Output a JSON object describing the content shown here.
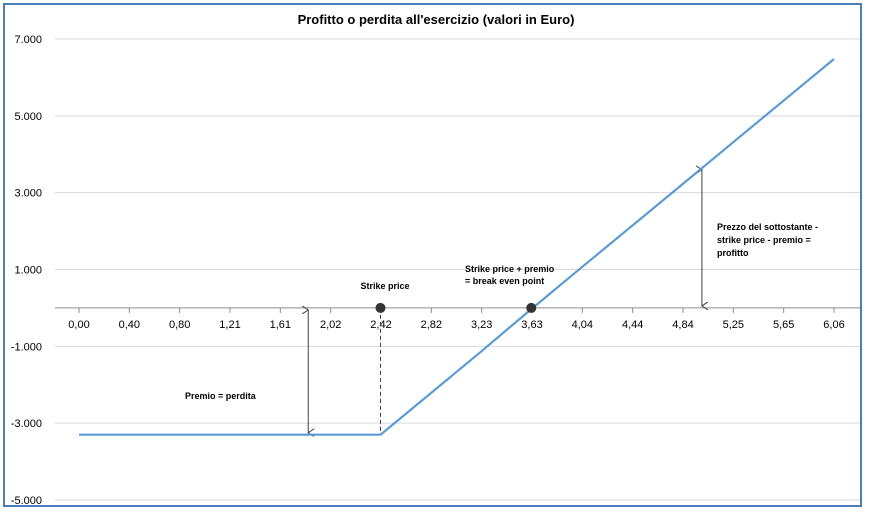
{
  "chart_data": {
    "type": "line",
    "title": "Profitto o perdita all'esercizio (valori in Euro)",
    "xlabel": "",
    "ylabel": "",
    "categories": [
      "0,00",
      "0,40",
      "0,80",
      "1,21",
      "1,61",
      "2,02",
      "2,42",
      "2,82",
      "3,23",
      "3,63",
      "4,04",
      "4,44",
      "4,84",
      "5,25",
      "5,65",
      "6,06"
    ],
    "y_ticks": [
      "7.000",
      "5.000",
      "3.000",
      "1.000",
      "-1.000",
      "-3.000",
      "-5.000"
    ],
    "ylim": [
      -5000,
      7000
    ],
    "grid": true,
    "legend": "none",
    "series_color": "#5b9bd5",
    "series": [
      {
        "x": [
          0.0,
          0.4,
          0.8,
          1.21,
          1.61,
          2.02,
          2.42,
          2.82,
          3.23,
          3.63,
          4.04,
          4.44,
          4.84,
          5.25,
          5.65,
          6.06
        ],
        "values": [
          -3300,
          -3300,
          -3300,
          -3300,
          -3300,
          -3300,
          -3300,
          -2230,
          -1130,
          -30,
          1070,
          2140,
          3210,
          4310,
          5380,
          6480
        ]
      }
    ],
    "points": [
      {
        "name": "strike",
        "x": 2.42,
        "y": 0
      },
      {
        "name": "break-even",
        "x": 3.63,
        "y": 0
      }
    ],
    "annotations": {
      "strike": "Strike price",
      "breakeven_1": "Strike price + premio",
      "breakeven_2": "= break even point",
      "premium": "Premio = perdita",
      "profit_1": "Prezzo del sottostante -",
      "profit_2": "strike price - premio =",
      "profit_3": "profitto"
    },
    "arrows": [
      {
        "name": "premium-arrow",
        "x": 1.84,
        "y1": 0,
        "y2": -3300
      },
      {
        "name": "profit-arrow",
        "x": 5.0,
        "y1": 0,
        "y2": 3650
      }
    ]
  }
}
